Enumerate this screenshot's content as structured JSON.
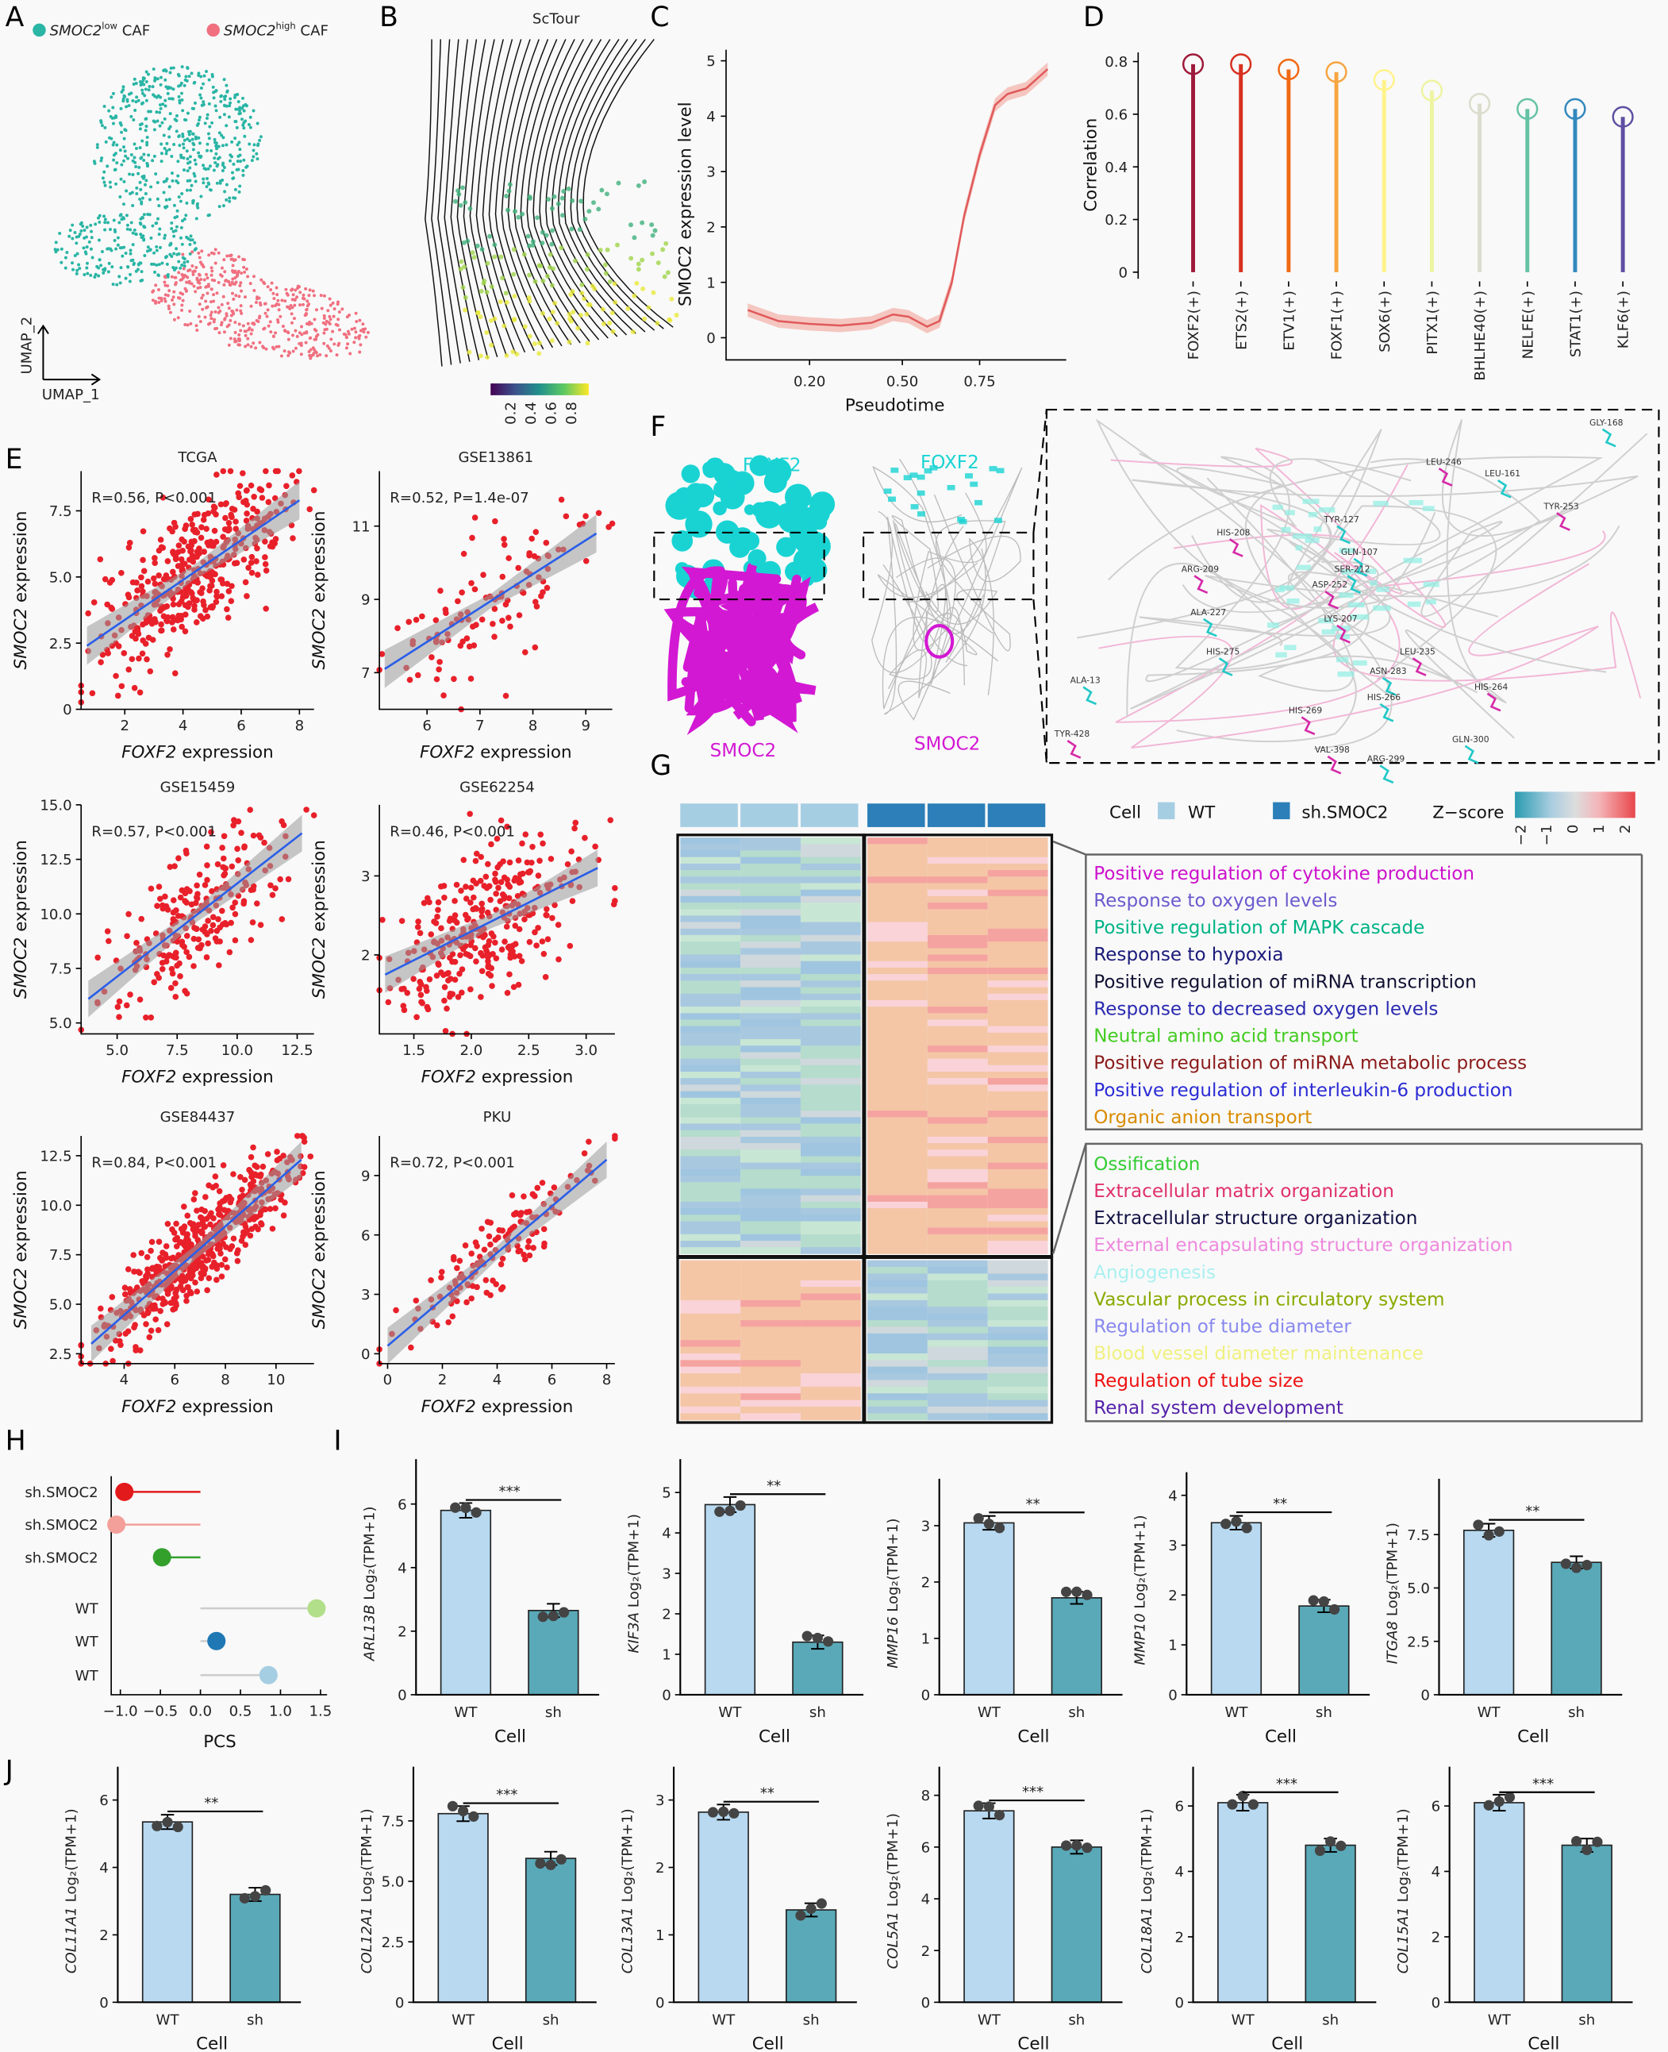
{
  "panel_labels": [
    "A",
    "B",
    "C",
    "D",
    "E",
    "F",
    "G",
    "H",
    "I",
    "J"
  ],
  "colors": {
    "teal_low": "#2ab5a5",
    "pink_high": "#f07080",
    "scatter_red": "#e8202a",
    "fit_blue": "#2a5ee8",
    "wt_bar": "#b8d9f0",
    "sh_bar": "#5aa9b8"
  },
  "chart_data": [
    {
      "panel": "A",
      "type": "scatter",
      "xlabel": "UMAP_1",
      "ylabel": "UMAP_2",
      "legend": [
        {
          "gene": "SMOC2",
          "sup": "low",
          "suffix": " CAF",
          "color": "#2ab5a5"
        },
        {
          "gene": "SMOC2",
          "sup": "high",
          "suffix": " CAF",
          "color": "#f07080"
        }
      ]
    },
    {
      "panel": "B",
      "type": "streamplot",
      "title": "ScTour",
      "colorbar_ticks": [
        "0.2",
        "0.4",
        "0.6",
        "0.8"
      ],
      "colormap": "viridis"
    },
    {
      "panel": "C",
      "type": "line",
      "xlabel": "Pseudotime",
      "ylabel": "SMOC2 expression level",
      "xlim": [
        -0.07,
        1.03
      ],
      "ylim": [
        -0.4,
        5.2
      ],
      "xticks": [
        0.2,
        0.5,
        0.75
      ],
      "xtick_labels": [
        "0.20",
        "0.50",
        "0.75"
      ],
      "yticks": [
        0,
        1,
        2,
        3,
        4,
        5
      ],
      "x": [
        0.0,
        0.05,
        0.1,
        0.2,
        0.3,
        0.4,
        0.47,
        0.52,
        0.58,
        0.62,
        0.66,
        0.7,
        0.75,
        0.8,
        0.84,
        0.9,
        0.97
      ],
      "y": [
        0.5,
        0.4,
        0.3,
        0.25,
        0.22,
        0.27,
        0.42,
        0.38,
        0.2,
        0.3,
        1.0,
        2.2,
        3.3,
        4.2,
        4.4,
        4.5,
        4.85
      ],
      "color": "#e0595a"
    },
    {
      "panel": "D",
      "type": "bar",
      "style": "lollipop",
      "ylabel": "Correlation",
      "ylim": [
        -0.025,
        0.835
      ],
      "yticks": [
        0,
        0.2,
        0.4,
        0.6,
        0.8
      ],
      "categories": [
        "FOXF2(+)",
        "ETS2(+)",
        "ETV1(+)",
        "FOXF1(+)",
        "SOX6(+)",
        "PITX1(+)",
        "BHLHE40(+)",
        "NELFE(+)",
        "STAT1(+)",
        "KLF6(+)"
      ],
      "values": [
        0.79,
        0.79,
        0.77,
        0.76,
        0.73,
        0.69,
        0.64,
        0.62,
        0.62,
        0.59
      ],
      "colors": [
        "#9e1a3a",
        "#d7301f",
        "#f16913",
        "#f7a541",
        "#fff38a",
        "#eef4a0",
        "#dcdccc",
        "#66c2a5",
        "#3288bd",
        "#5e4fa2"
      ]
    },
    {
      "panel": "E",
      "type": "scatter",
      "title": "TCGA",
      "stat": "R=0.56, P<0.001",
      "xlabel": "FOXF2",
      "ylabel": "SMOC2",
      "axis_suffix": " expression",
      "xlim": [
        0.5,
        8.5
      ],
      "ylim": [
        0,
        9
      ],
      "xticks": [
        2,
        4,
        6,
        8
      ],
      "yticks": [
        0,
        2.5,
        5.0,
        7.5
      ],
      "ytick_labels": [
        "0",
        "2.5",
        "5.0",
        "7.5"
      ],
      "fit": [
        [
          0.7,
          2.4
        ],
        [
          8,
          7.9
        ]
      ]
    },
    {
      "panel": "E",
      "type": "scatter",
      "title": "GSE13861",
      "stat": "R=0.52, P=1.4e-07",
      "xlabel": "FOXF2",
      "ylabel": "SMOC2",
      "axis_suffix": " expression",
      "xlim": [
        5.1,
        9.5
      ],
      "ylim": [
        6,
        12.5
      ],
      "xticks": [
        6,
        7,
        8,
        9
      ],
      "yticks": [
        7,
        9,
        11
      ],
      "ytick_labels": [
        "7",
        "9",
        "11"
      ],
      "fit": [
        [
          5.2,
          7.1
        ],
        [
          9.2,
          10.8
        ]
      ]
    },
    {
      "panel": "E",
      "type": "scatter",
      "title": "GSE15459",
      "stat": "R=0.57, P<0.001",
      "xlabel": "FOXF2",
      "ylabel": "SMOC2",
      "axis_suffix": " expression",
      "xlim": [
        3.5,
        13.2
      ],
      "ylim": [
        4.5,
        15
      ],
      "xticks": [
        5,
        7.5,
        10,
        12.5
      ],
      "xtick_labels": [
        "5.0",
        "7.5",
        "10.0",
        "12.5"
      ],
      "yticks": [
        5,
        7.5,
        10,
        12.5,
        15
      ],
      "ytick_labels": [
        "5.0",
        "7.5",
        "10.0",
        "12.5",
        "15.0"
      ],
      "fit": [
        [
          3.8,
          6.1
        ],
        [
          12.7,
          13.7
        ]
      ]
    },
    {
      "panel": "E",
      "type": "scatter",
      "title": "GSE62254",
      "stat": "R=0.46, P<0.001",
      "xlabel": "FOXF2",
      "ylabel": "SMOC2",
      "axis_suffix": " expression",
      "xlim": [
        1.2,
        3.25
      ],
      "ylim": [
        1,
        3.9
      ],
      "xticks": [
        1.5,
        2,
        2.5,
        3
      ],
      "xtick_labels": [
        "1.5",
        "2.0",
        "2.5",
        "3.0"
      ],
      "yticks": [
        2,
        3
      ],
      "ytick_labels": [
        "2",
        "3"
      ],
      "fit": [
        [
          1.25,
          1.75
        ],
        [
          3.1,
          3.1
        ]
      ]
    },
    {
      "panel": "E",
      "type": "scatter",
      "title": "GSE84437",
      "stat": "R=0.84, P<0.001",
      "xlabel": "FOXF2",
      "ylabel": "SMOC2",
      "axis_suffix": " expression",
      "xlim": [
        2.3,
        11.5
      ],
      "ylim": [
        2,
        13.5
      ],
      "xticks": [
        4,
        6,
        8,
        10
      ],
      "yticks": [
        2.5,
        5,
        7.5,
        10,
        12.5
      ],
      "ytick_labels": [
        "2.5",
        "5.0",
        "7.5",
        "10.0",
        "12.5"
      ],
      "fit": [
        [
          2.7,
          3.0
        ],
        [
          11,
          12.3
        ]
      ]
    },
    {
      "panel": "E",
      "type": "scatter",
      "title": "PKU",
      "stat": "R=0.72, P<0.001",
      "xlabel": "FOXF2",
      "ylabel": "SMOC2",
      "axis_suffix": " expression",
      "xlim": [
        -0.3,
        8.3
      ],
      "ylim": [
        -0.5,
        11
      ],
      "xticks": [
        0,
        2,
        4,
        6,
        8
      ],
      "yticks": [
        0,
        3,
        6,
        9
      ],
      "ytick_labels": [
        "0",
        "3",
        "6",
        "9"
      ],
      "fit": [
        [
          0,
          0.4
        ],
        [
          8,
          9.8
        ]
      ]
    },
    {
      "panel": "G",
      "type": "heatmap",
      "groups": [
        "WT",
        "sh.SMOC2"
      ],
      "legend_title": "Cell",
      "zscore_title": "Z−score",
      "zscore_ticks": [
        "−2",
        "−1",
        "0",
        "1",
        "2"
      ],
      "group_colors": [
        "#a6cee3",
        "#2c7fb8"
      ],
      "terms_up": [
        {
          "text": "Positive regulation of cytokine production",
          "color": "#cc11cc"
        },
        {
          "text": "Response to oxygen levels",
          "color": "#6a5acd"
        },
        {
          "text": "Positive regulation of MAPK cascade",
          "color": "#00b386"
        },
        {
          "text": "Response to hypoxia",
          "color": "#1a1a7a"
        },
        {
          "text": "Positive regulation of miRNA transcription",
          "color": "#111133"
        },
        {
          "text": "Response to decreased oxygen levels",
          "color": "#2a2ab0"
        },
        {
          "text": "Neutral amino acid transport",
          "color": "#44cc22"
        },
        {
          "text": "Positive regulation of miRNA metabolic process",
          "color": "#8b1a1a"
        },
        {
          "text": "Positive regulation of interleukin-6 production",
          "color": "#2b2bd6"
        },
        {
          "text": "Organic anion transport",
          "color": "#d98c00"
        }
      ],
      "terms_down": [
        {
          "text": "Ossification",
          "color": "#33cc33"
        },
        {
          "text": "Extracellular matrix organization",
          "color": "#e0306a"
        },
        {
          "text": "Extracellular structure organization",
          "color": "#111144"
        },
        {
          "text": "External encapsulating structure organization",
          "color": "#ee88dd"
        },
        {
          "text": "Angiogenesis",
          "color": "#aaf0f0"
        },
        {
          "text": "Vascular process in circulatory system",
          "color": "#88aa00"
        },
        {
          "text": "Regulation of tube diameter",
          "color": "#8888ee"
        },
        {
          "text": "Blood vessel diameter maintenance",
          "color": "#f0f080"
        },
        {
          "text": "Regulation of tube size",
          "color": "#ee1111"
        },
        {
          "text": "Renal system development",
          "color": "#5522aa"
        }
      ]
    },
    {
      "panel": "H",
      "type": "scatter",
      "style": "lollipop",
      "xlabel": "PCS",
      "xlim": [
        -1.2,
        1.66
      ],
      "xticks": [
        -1,
        -0.5,
        0,
        0.5,
        1,
        1.5
      ],
      "xtick_labels": [
        "−1.0",
        "−0.5",
        "0.0",
        "0.5",
        "1.0",
        "1.5"
      ],
      "categories": [
        "sh.SMOC2",
        "sh.SMOC2",
        "sh.SMOC2",
        "WT",
        "WT",
        "WT"
      ],
      "values": [
        -0.95,
        -1.05,
        -0.48,
        1.45,
        0.2,
        0.85
      ],
      "colors": [
        "#e31a1c",
        "#f4a09a",
        "#33a02c",
        "#b2df8a",
        "#1f78b4",
        "#a6cee3"
      ]
    },
    {
      "panel": "I",
      "type": "bar",
      "gene": "ARL13B",
      "unit": " Log₂(TPM+1)",
      "xlabel": "Cell",
      "categories": [
        "WT",
        "sh"
      ],
      "values": [
        5.8,
        2.65
      ],
      "sig": "***",
      "ylim": [
        0,
        7
      ],
      "yticks": [
        0,
        2,
        4,
        6
      ]
    },
    {
      "panel": "I",
      "type": "bar",
      "gene": "KIF3A",
      "unit": " Log₂(TPM+1)",
      "xlabel": "Cell",
      "categories": [
        "WT",
        "sh"
      ],
      "values": [
        4.7,
        1.3
      ],
      "sig": "**",
      "ylim": [
        0,
        5.5
      ],
      "yticks": [
        0,
        1,
        2,
        3,
        4,
        5
      ]
    },
    {
      "panel": "I",
      "type": "bar",
      "gene": "MMP16",
      "unit": " Log₂(TPM+1)",
      "xlabel": "Cell",
      "categories": [
        "WT",
        "sh"
      ],
      "values": [
        3.05,
        1.72
      ],
      "sig": "**",
      "ylim": [
        0,
        3.6
      ],
      "yticks": [
        0,
        1,
        2,
        3
      ]
    },
    {
      "panel": "I",
      "type": "bar",
      "gene": "MMP10",
      "unit": " Log₂(TPM+1)",
      "xlabel": "Cell",
      "categories": [
        "WT",
        "sh"
      ],
      "values": [
        3.45,
        1.78
      ],
      "sig": "**",
      "ylim": [
        0,
        4.2
      ],
      "yticks": [
        0,
        1,
        2,
        3,
        4
      ]
    },
    {
      "panel": "I",
      "type": "bar",
      "gene": "ITGA8",
      "unit": " Log₂(TPM+1)",
      "xlabel": "Cell",
      "categories": [
        "WT",
        "sh"
      ],
      "values": [
        7.7,
        6.2
      ],
      "sig": "**",
      "ylim": [
        0,
        9.5
      ],
      "yticks": [
        0,
        2.5,
        5,
        7.5
      ],
      "ytick_labels": [
        "0",
        "2.5",
        "5.0",
        "7.5"
      ]
    },
    {
      "panel": "J",
      "type": "bar",
      "gene": "COL11A1",
      "unit": " Log₂(TPM+1)",
      "xlabel": "Cell",
      "categories": [
        "WT",
        "sh"
      ],
      "values": [
        5.35,
        3.2
      ],
      "sig": "**",
      "ylim": [
        0,
        6.6
      ],
      "yticks": [
        0,
        2,
        4,
        6
      ]
    },
    {
      "panel": "J",
      "type": "bar",
      "gene": "COL12A1",
      "unit": " Log₂(TPM+1)",
      "xlabel": "Cell",
      "categories": [
        "WT",
        "sh"
      ],
      "values": [
        7.8,
        5.95
      ],
      "sig": "***",
      "ylim": [
        0,
        9.2
      ],
      "yticks": [
        0,
        2.5,
        5,
        7.5
      ],
      "ytick_labels": [
        "0",
        "2.5",
        "5.0",
        "7.5"
      ]
    },
    {
      "panel": "J",
      "type": "bar",
      "gene": "COL13A1",
      "unit": " Log₂(TPM+1)",
      "xlabel": "Cell",
      "categories": [
        "WT",
        "sh"
      ],
      "values": [
        2.82,
        1.37
      ],
      "sig": "**",
      "ylim": [
        0,
        3.3
      ],
      "yticks": [
        0,
        1,
        2,
        3
      ]
    },
    {
      "panel": "J",
      "type": "bar",
      "gene": "COL5A1",
      "unit": " Log₂(TPM+1)",
      "xlabel": "Cell",
      "categories": [
        "WT",
        "sh"
      ],
      "values": [
        7.4,
        6.0
      ],
      "sig": "***",
      "ylim": [
        0,
        8.6
      ],
      "yticks": [
        0,
        2,
        4,
        6,
        8
      ]
    },
    {
      "panel": "J",
      "type": "bar",
      "gene": "COL18A1",
      "unit": " Log₂(TPM+1)",
      "xlabel": "Cell",
      "categories": [
        "WT",
        "sh"
      ],
      "values": [
        6.1,
        4.8
      ],
      "sig": "***",
      "ylim": [
        0,
        6.8
      ],
      "yticks": [
        0,
        2,
        4,
        6
      ]
    },
    {
      "panel": "J",
      "type": "bar",
      "gene": "COL15A1",
      "unit": " Log₂(TPM+1)",
      "xlabel": "Cell",
      "categories": [
        "WT",
        "sh"
      ],
      "values": [
        6.1,
        4.8
      ],
      "sig": "***",
      "ylim": [
        0,
        6.8
      ],
      "yticks": [
        0,
        2,
        4,
        6
      ]
    }
  ],
  "panelF": {
    "protein1": "FOXF2",
    "protein2": "SMOC2",
    "protein1_color": "#19d3d3",
    "protein2_color": "#d318d3",
    "residues": [
      "GLY-168",
      "LEU-246",
      "LEU-161",
      "TYR-253",
      "TYR-127",
      "HIS-208",
      "GLN-107",
      "ARG-209",
      "SER-212",
      "ASP-252",
      "ALA-227",
      "LYS-207",
      "HIS-275",
      "LEU-235",
      "ASN-283",
      "HIS-264",
      "ALA-13",
      "HIS-269",
      "HIS-266",
      "TYR-428",
      "GLN-300",
      "VAL-398",
      "ARG-299"
    ]
  }
}
